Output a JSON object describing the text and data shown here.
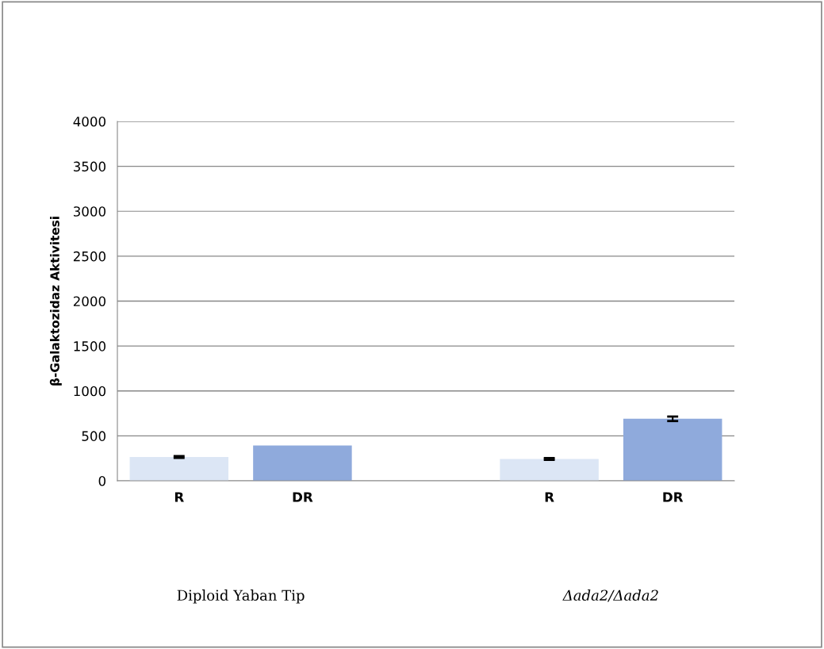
{
  "chart_data": {
    "type": "bar",
    "ylabel": "β-Galaktozidaz Aktivitesi",
    "categories": [
      "R",
      "DR",
      null,
      "R",
      "DR"
    ],
    "values": [
      265,
      393,
      null,
      243,
      690
    ],
    "errors": [
      10,
      null,
      null,
      10,
      25
    ],
    "colors": [
      "#dce6f5",
      "#8faadc",
      "#ffffff",
      "#dce6f5",
      "#8faadc"
    ],
    "ylim": [
      0,
      4000
    ],
    "yticks": [
      0,
      500,
      1000,
      1500,
      2000,
      2500,
      3000,
      3500,
      4000
    ],
    "grid": "y",
    "annotations": [
      "Diploid Yaban Tip",
      "Δada2/Δada2"
    ]
  }
}
